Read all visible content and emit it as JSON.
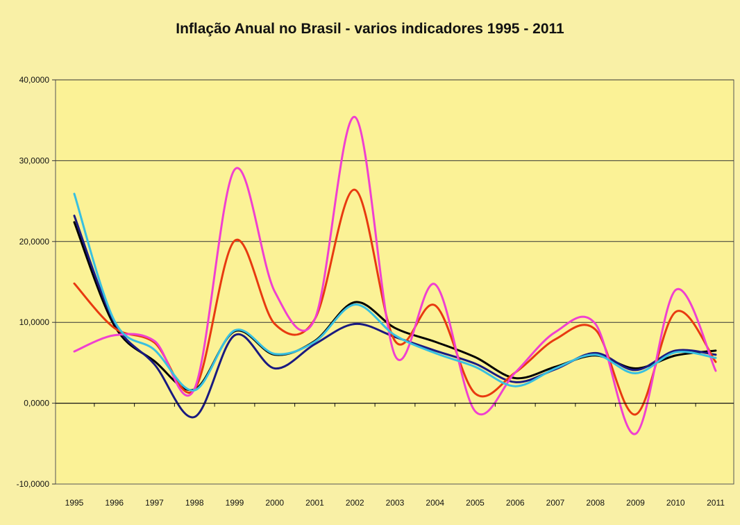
{
  "chart_data": {
    "type": "line",
    "title": "Inflação Anual no Brasil - varios indicadores 1995 - 2011",
    "x": [
      "1995",
      "1996",
      "1997",
      "1998",
      "1999",
      "2000",
      "2001",
      "2002",
      "2003",
      "2004",
      "2005",
      "2006",
      "2007",
      "2008",
      "2009",
      "2010",
      "2011"
    ],
    "yticks": [
      "40,0000",
      "30,0000",
      "20,0000",
      "10,0000",
      "0,0000",
      "-10,0000"
    ],
    "ylim": [
      -10,
      40
    ],
    "grid": true,
    "series": [
      {
        "color": "#000000",
        "values": [
          22.4,
          9.6,
          5.2,
          1.7,
          8.9,
          6.0,
          7.7,
          12.5,
          9.3,
          7.6,
          5.7,
          3.1,
          4.5,
          5.9,
          4.3,
          5.9,
          6.5
        ]
      },
      {
        "color": "#1a1a80",
        "values": [
          23.2,
          10.0,
          4.8,
          -1.7,
          8.4,
          4.3,
          7.3,
          9.8,
          8.2,
          6.5,
          4.9,
          2.6,
          4.2,
          6.2,
          4.1,
          6.5,
          6.0
        ]
      },
      {
        "color": "#e83a10",
        "values": [
          14.8,
          9.3,
          7.5,
          1.7,
          20.1,
          9.8,
          10.4,
          26.4,
          7.7,
          12.1,
          1.2,
          3.8,
          7.9,
          9.1,
          -1.4,
          11.3,
          5.1
        ]
      },
      {
        "color": "#f040d0",
        "values": [
          6.4,
          8.4,
          7.7,
          1.8,
          28.9,
          13.8,
          10.4,
          35.4,
          5.9,
          14.7,
          -1.0,
          3.8,
          8.8,
          9.8,
          -3.8,
          14.0,
          4.0
        ]
      },
      {
        "color": "#38c0e0",
        "values": [
          25.9,
          10.2,
          6.6,
          1.6,
          9.0,
          6.1,
          7.6,
          12.2,
          8.4,
          6.2,
          4.5,
          2.1,
          4.3,
          6.0,
          3.7,
          6.3,
          5.6
        ]
      }
    ]
  }
}
